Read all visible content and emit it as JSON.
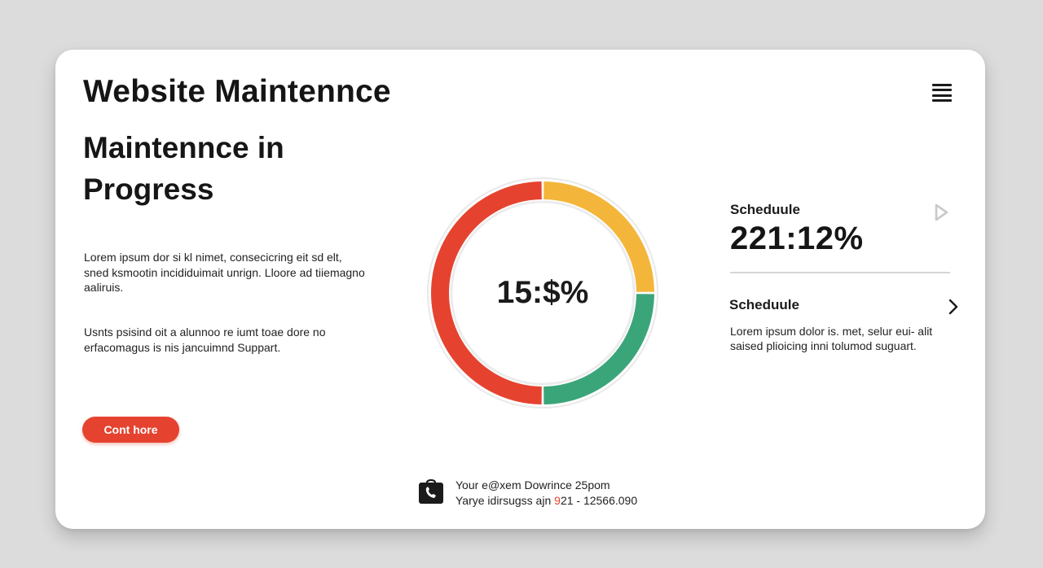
{
  "header": {
    "site_title": "Website Maintennce",
    "menu_icon": "hamburger-menu-icon"
  },
  "status": {
    "heading": "Maintennce in Progress",
    "intro": "Lorem ipsum dor si kl nimet, consecicring eit sd elt, sned ksmootin incididuimait unrign. Lloore ad tiiemagno aaliruis.",
    "support": "Usnts psisind oit a alunnoo re iumt toae dore no erfacomagus is nis jancuimnd Suppart.",
    "contact_button": "Cont hore"
  },
  "progress": {
    "center_label": "15:$%",
    "segments": [
      {
        "color": "#e5432f",
        "fraction": 0.5
      },
      {
        "color": "#f3b63b",
        "fraction": 0.25
      },
      {
        "color": "#3ba57a",
        "fraction": 0.25
      }
    ]
  },
  "schedule_primary": {
    "label": "Scheduule",
    "value": "221:12%",
    "action_icon": "play-icon"
  },
  "schedule_secondary": {
    "label": "Scheduule",
    "text": "Lorem ipsum dolor is. met, selur eui- alit saised plioicing inni tolumod suguart.",
    "action_icon": "chevron-right-icon"
  },
  "footer": {
    "icon": "phone-bag-icon",
    "line1": "Your e@xem Dowrince 25pom",
    "line2_prefix": "Yarye idirsugss ajn ",
    "line2_accent": "9",
    "line2_suffix": "21 - 12566.090"
  },
  "colors": {
    "accent": "#e5432f",
    "yellow": "#f3b63b",
    "green": "#3ba57a"
  }
}
